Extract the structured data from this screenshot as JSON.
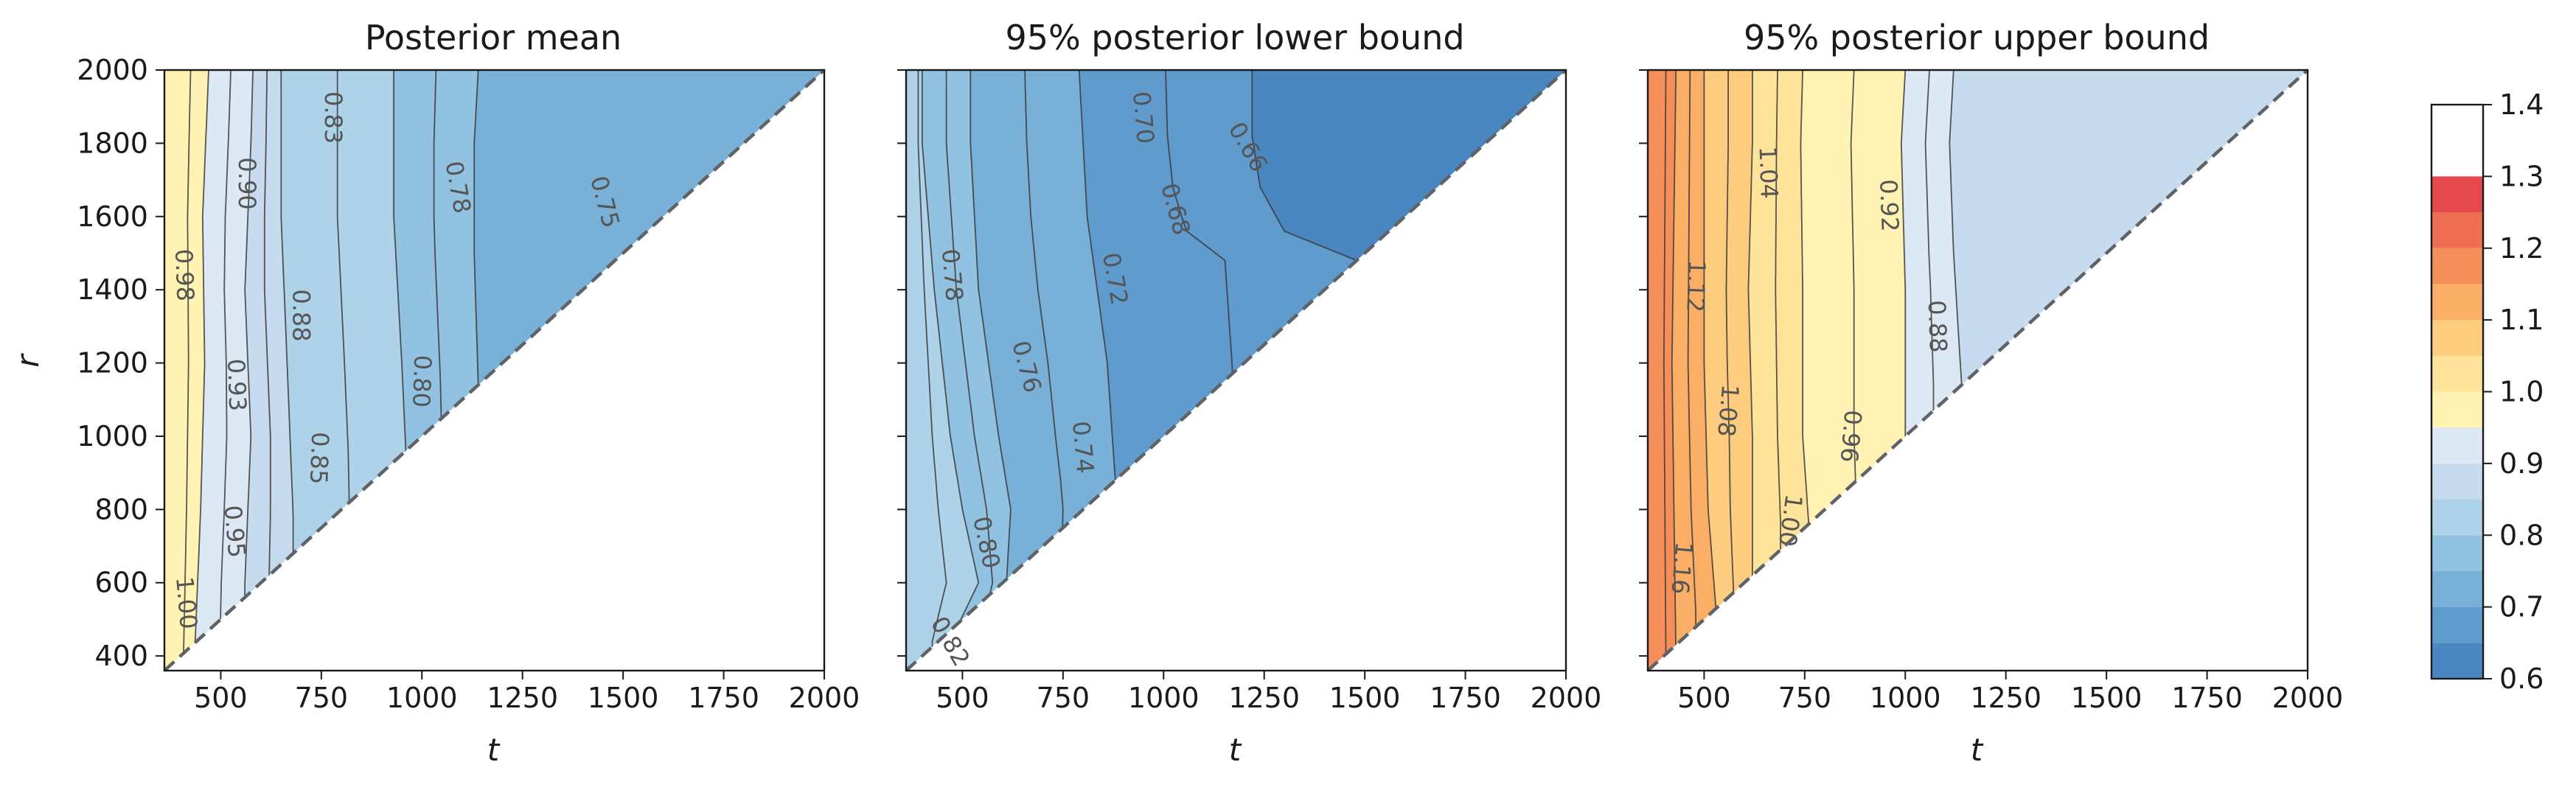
{
  "chart_data": {
    "type": "heatmap",
    "subtype": "filled-contour",
    "shared_axes": {
      "xlabel": "t",
      "ylabel": "r",
      "xlim": [
        360,
        2000
      ],
      "ylim": [
        360,
        2000
      ],
      "xticks": [
        500,
        750,
        1000,
        1250,
        1500,
        1750,
        2000
      ],
      "yticks": [
        400,
        600,
        800,
        1000,
        1200,
        1400,
        1600,
        1800,
        2000
      ],
      "diagonal": "dashed line r = t, lower-right triangle left blank"
    },
    "colorbar": {
      "ticks": [
        "0.6",
        "0.7",
        "0.8",
        "0.9",
        "1.0",
        "1.1",
        "1.2",
        "1.3",
        "1.4"
      ],
      "levels": [
        0.6,
        0.65,
        0.7,
        0.75,
        0.8,
        0.85,
        0.9,
        0.95,
        1.0,
        1.05,
        1.1,
        1.15,
        1.2,
        1.25,
        1.3,
        1.35,
        1.4
      ],
      "colors": [
        "#4a86c0",
        "#5f9bcc",
        "#78b0d8",
        "#91c2e2",
        "#aed2e8",
        "#c6dcee",
        "#dce8f4",
        "#fff2b3",
        "#fde49a",
        "#fdcc7e",
        "#fbaf66",
        "#f58e59",
        "#ef6e52",
        "#e5484d"
      ]
    },
    "panels": [
      {
        "title": "Posterior mean",
        "boundaries_t_at_r": [
          {
            "value": 0.95,
            "t_at_r": [
              [
                400,
                435
              ],
              [
                800,
                450
              ],
              [
                1200,
                460
              ],
              [
                1600,
                455
              ],
              [
                2000,
                470
              ]
            ]
          },
          {
            "value": 0.9,
            "t_at_r": [
              [
                600,
                560
              ],
              [
                1000,
                575
              ],
              [
                1400,
                560
              ],
              [
                1800,
                575
              ],
              [
                2000,
                580
              ]
            ]
          },
          {
            "value": 0.85,
            "t_at_r": [
              [
                780,
                680
              ],
              [
                1200,
                665
              ],
              [
                1600,
                650
              ],
              [
                2000,
                650
              ]
            ]
          },
          {
            "value": 0.8,
            "t_at_r": [
              [
                960,
                960
              ],
              [
                1200,
                950
              ],
              [
                1600,
                930
              ],
              [
                2000,
                930
              ]
            ]
          },
          {
            "value": 0.75,
            "t_at_r": [
              [
                1140,
                1140
              ],
              [
                1500,
                1130
              ],
              [
                1800,
                1130
              ],
              [
                2000,
                1140
              ]
            ]
          }
        ],
        "contour_labels": [
          {
            "text": "1.00",
            "t": 415,
            "r": 545,
            "rot": 85
          },
          {
            "text": "0.98",
            "t": 410,
            "r": 1440,
            "rot": 88
          },
          {
            "text": "0.95",
            "t": 535,
            "r": 740,
            "rot": 85
          },
          {
            "text": "0.93",
            "t": 540,
            "r": 1140,
            "rot": 88
          },
          {
            "text": "0.90",
            "t": 565,
            "r": 1690,
            "rot": 90
          },
          {
            "text": "0.88",
            "t": 700,
            "r": 1330,
            "rot": 90
          },
          {
            "text": "0.85",
            "t": 745,
            "r": 940,
            "rot": 92
          },
          {
            "text": "0.83",
            "t": 780,
            "r": 1870,
            "rot": 90
          },
          {
            "text": "0.80",
            "t": 1000,
            "r": 1150,
            "rot": 92
          },
          {
            "text": "0.78",
            "t": 1090,
            "r": 1680,
            "rot": 80
          },
          {
            "text": "0.75",
            "t": 1455,
            "r": 1640,
            "rot": 75
          }
        ]
      },
      {
        "title": "95% posterior lower bound",
        "boundaries_t_at_r": [
          {
            "value": 0.8,
            "t_at_r": [
              [
                440,
                470
              ],
              [
                600,
                540
              ],
              [
                800,
                500
              ],
              [
                1000,
                470
              ],
              [
                1400,
                430
              ],
              [
                1800,
                400
              ],
              [
                2000,
                400
              ]
            ]
          },
          {
            "value": 0.75,
            "t_at_r": [
              [
                610,
                610
              ],
              [
                800,
                620
              ],
              [
                1000,
                590
              ],
              [
                1400,
                540
              ],
              [
                1800,
                520
              ],
              [
                2000,
                520
              ]
            ]
          },
          {
            "value": 0.7,
            "t_at_r": [
              [
                880,
                880
              ],
              [
                1200,
                860
              ],
              [
                1600,
                810
              ],
              [
                2000,
                790
              ]
            ]
          },
          {
            "value": 0.65,
            "t_at_r": [
              [
                1480,
                1480
              ],
              [
                1560,
                1300
              ],
              [
                1680,
                1240
              ],
              [
                1820,
                1220
              ],
              [
                2000,
                1220
              ]
            ]
          }
        ],
        "contour_labels": [
          {
            "text": "0.82",
            "t": 470,
            "r": 440,
            "rot": 60
          },
          {
            "text": "0.80",
            "t": 560,
            "r": 710,
            "rot": 78
          },
          {
            "text": "0.78",
            "t": 475,
            "r": 1440,
            "rot": 85
          },
          {
            "text": "0.76",
            "t": 660,
            "r": 1190,
            "rot": 75
          },
          {
            "text": "0.74",
            "t": 800,
            "r": 970,
            "rot": 85
          },
          {
            "text": "0.72",
            "t": 880,
            "r": 1430,
            "rot": 80
          },
          {
            "text": "0.70",
            "t": 950,
            "r": 1870,
            "rot": 85
          },
          {
            "text": "0.68",
            "t": 1030,
            "r": 1620,
            "rot": 75
          },
          {
            "text": "0.66",
            "t": 1210,
            "r": 1790,
            "rot": 60
          }
        ]
      },
      {
        "title": "95% posterior upper bound",
        "boundaries_t_at_r": [
          {
            "value": 1.15,
            "t_at_r": [
              [
                400,
                430
              ],
              [
                800,
                425
              ],
              [
                1200,
                420
              ],
              [
                1600,
                425
              ],
              [
                2000,
                430
              ]
            ]
          },
          {
            "value": 1.1,
            "t_at_r": [
              [
                520,
                530
              ],
              [
                800,
                510
              ],
              [
                1200,
                500
              ],
              [
                1600,
                500
              ],
              [
                2000,
                500
              ]
            ]
          },
          {
            "value": 1.05,
            "t_at_r": [
              [
                640,
                620
              ],
              [
                1000,
                620
              ],
              [
                1400,
                610
              ],
              [
                1800,
                620
              ],
              [
                2000,
                620
              ]
            ]
          },
          {
            "value": 1.0,
            "t_at_r": [
              [
                760,
                760
              ],
              [
                1000,
                745
              ],
              [
                1400,
                745
              ],
              [
                1800,
                740
              ],
              [
                2000,
                745
              ]
            ]
          },
          {
            "value": 0.95,
            "t_at_r": [
              [
                1020,
                1000
              ],
              [
                1400,
                1000
              ],
              [
                1800,
                990
              ],
              [
                2000,
                1000
              ]
            ]
          },
          {
            "value": 0.9,
            "t_at_r": [
              [
                1140,
                1140
              ],
              [
                1500,
                1120
              ],
              [
                1800,
                1110
              ],
              [
                2000,
                1120
              ]
            ]
          }
        ],
        "contour_labels": [
          {
            "text": "1.16",
            "t": 445,
            "r": 640,
            "rot": 95
          },
          {
            "text": "1.12",
            "t": 480,
            "r": 1410,
            "rot": 92
          },
          {
            "text": "1.08",
            "t": 560,
            "r": 1070,
            "rot": 95
          },
          {
            "text": "1.04",
            "t": 660,
            "r": 1720,
            "rot": 88
          },
          {
            "text": "1.00",
            "t": 715,
            "r": 770,
            "rot": 98
          },
          {
            "text": "0.96",
            "t": 865,
            "r": 1000,
            "rot": 95
          },
          {
            "text": "0.92",
            "t": 960,
            "r": 1630,
            "rot": 88
          },
          {
            "text": "0.88",
            "t": 1080,
            "r": 1300,
            "rot": 88
          }
        ]
      }
    ]
  }
}
